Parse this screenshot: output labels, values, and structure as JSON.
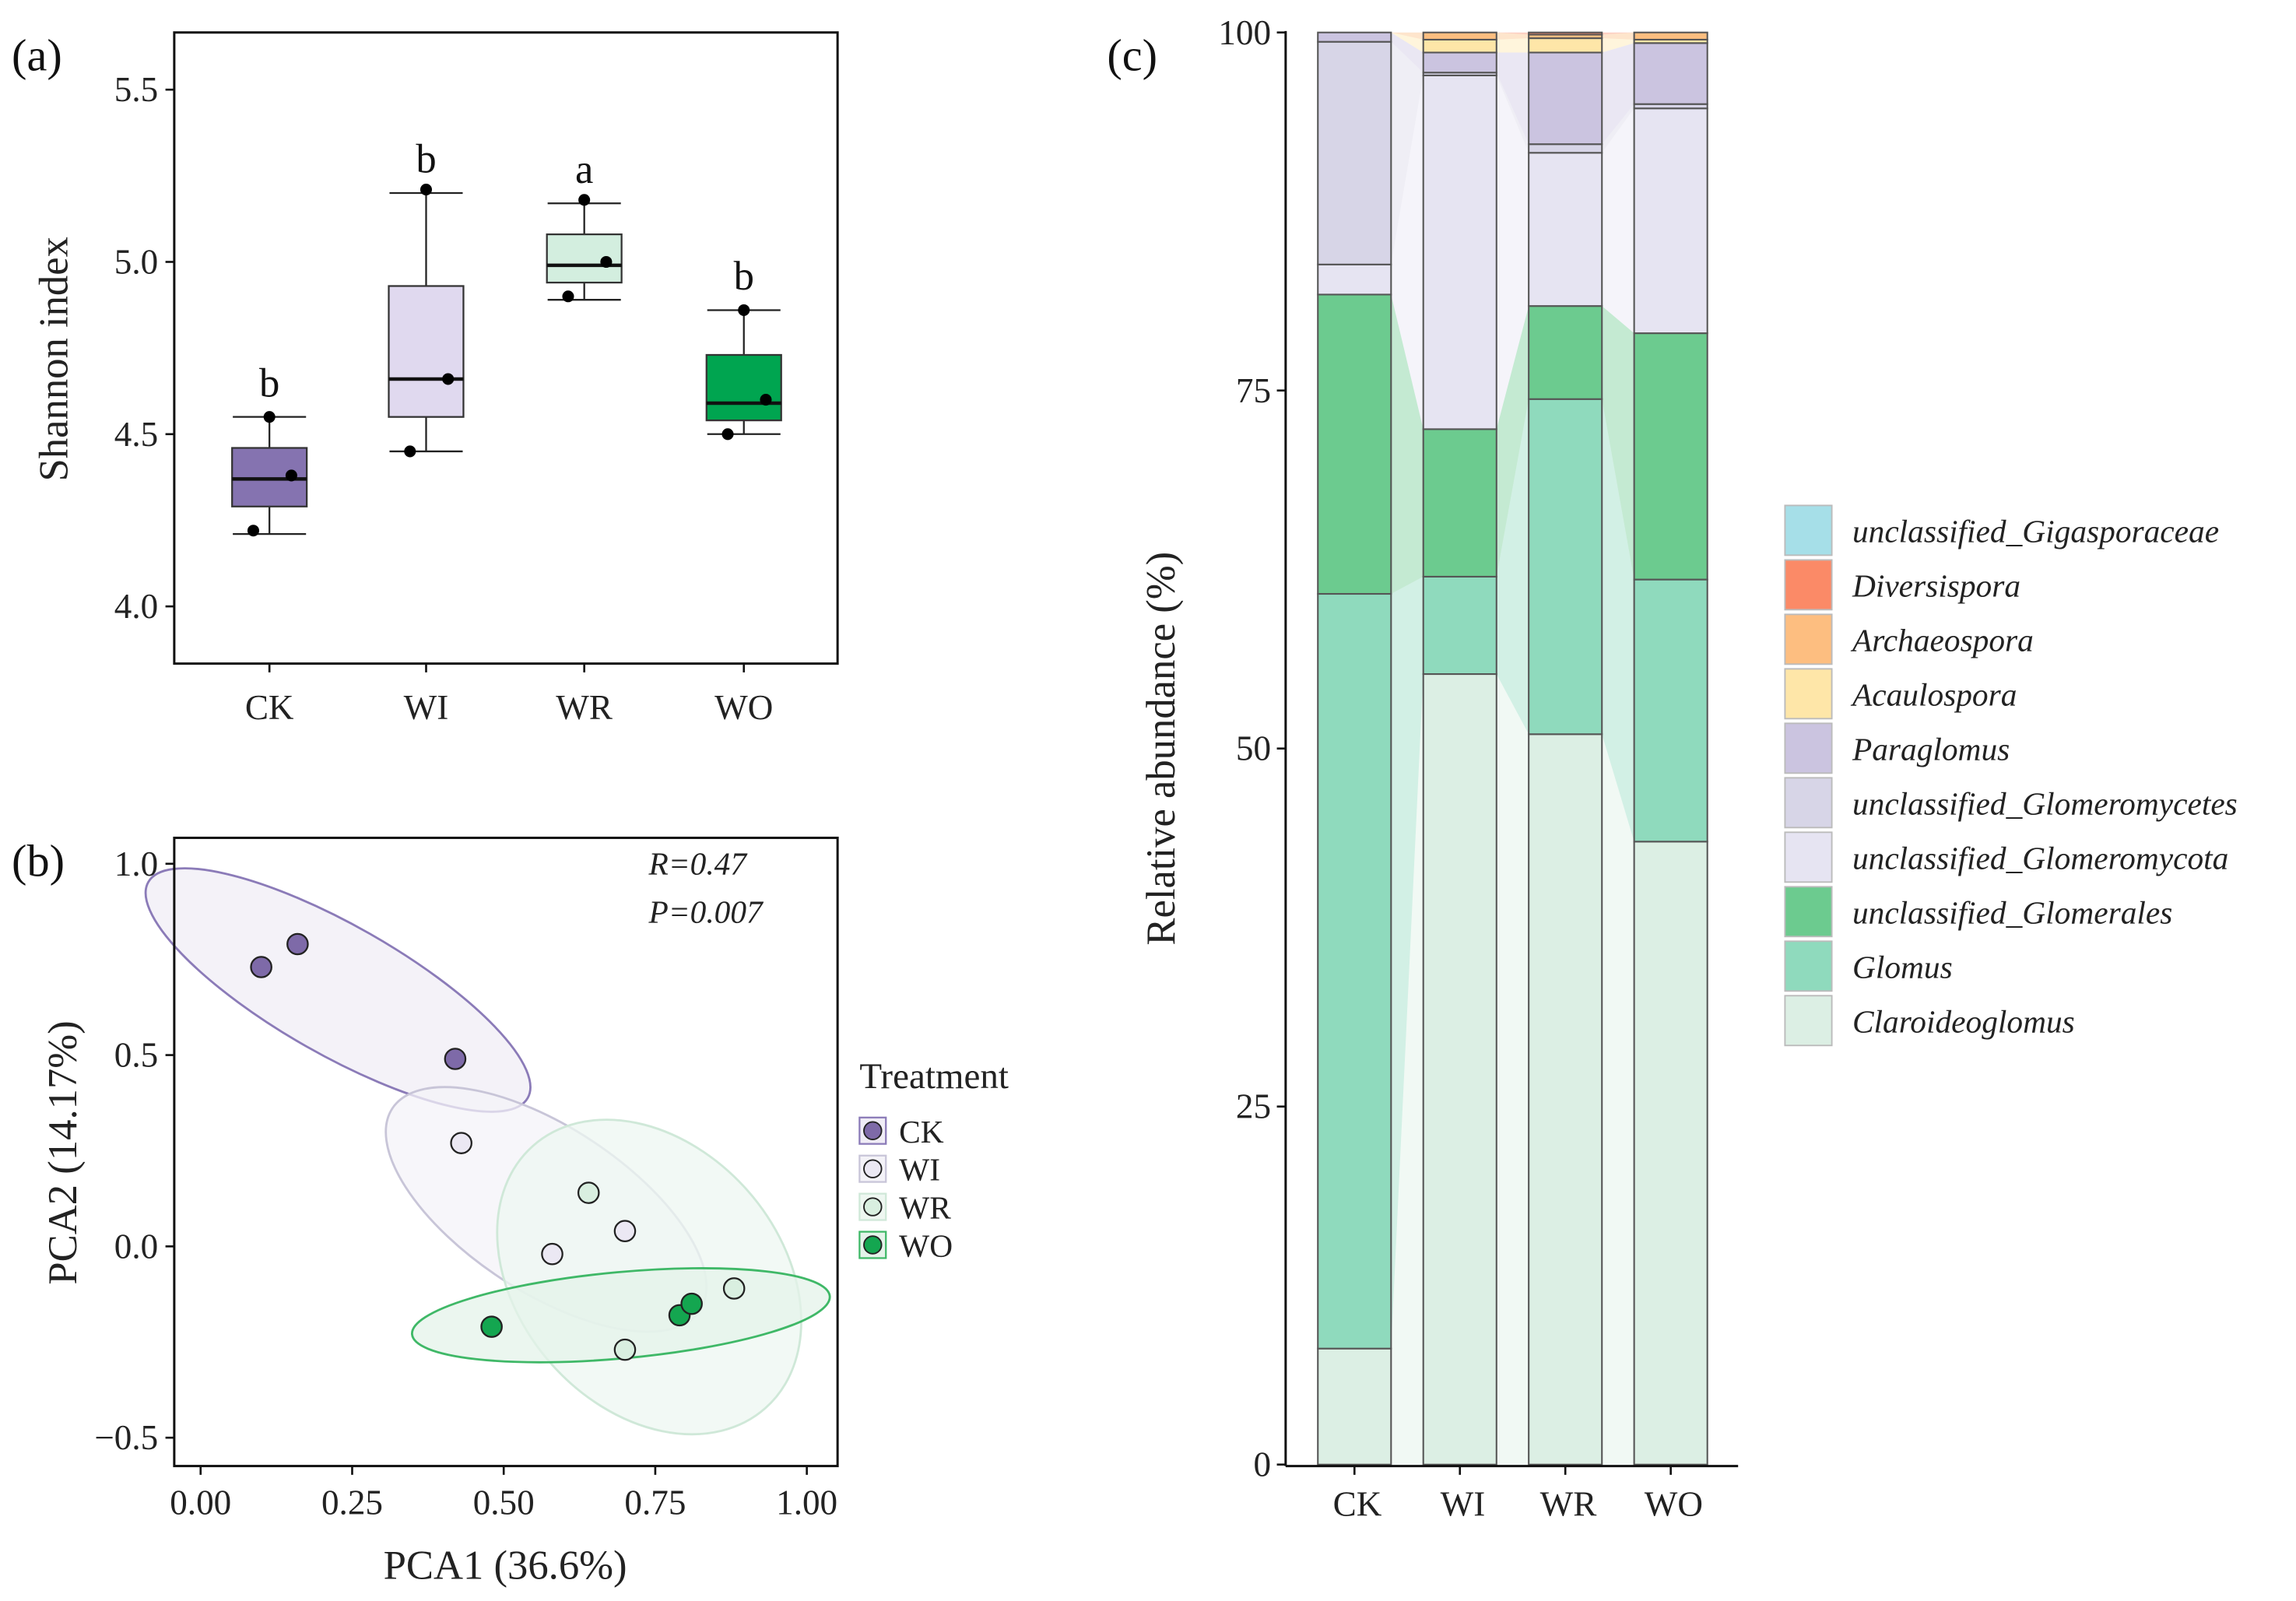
{
  "chart_data": [
    {
      "panel": "(a)",
      "type": "box",
      "ylabel": "Shannon index",
      "xlabel": "",
      "ylim": [
        3.834,
        5.666
      ],
      "yticks": [
        4.0,
        4.5,
        5.0,
        5.5
      ],
      "ytick_labels": [
        "4.0",
        "4.5",
        "5.0",
        "5.5"
      ],
      "categories": [
        "CK",
        "WI",
        "WR",
        "WO"
      ],
      "colors": [
        "#8573b0",
        "#e0d9ef",
        "#d3eedf",
        "#00a550"
      ],
      "boxes": [
        {
          "whisker_low": 4.21,
          "q1": 4.29,
          "median": 4.37,
          "q3": 4.46,
          "whisker_high": 4.55,
          "points": [
            4.55,
            4.38,
            4.22
          ],
          "letter": "b"
        },
        {
          "whisker_low": 4.45,
          "q1": 4.55,
          "median": 4.66,
          "q3": 4.93,
          "whisker_high": 5.2,
          "points": [
            5.21,
            4.66,
            4.45
          ],
          "letter": "b"
        },
        {
          "whisker_low": 4.89,
          "q1": 4.94,
          "median": 4.99,
          "q3": 5.08,
          "whisker_high": 5.17,
          "points": [
            5.18,
            5.0,
            4.9
          ],
          "letter": "a"
        },
        {
          "whisker_low": 4.5,
          "q1": 4.54,
          "median": 4.59,
          "q3": 4.73,
          "whisker_high": 4.86,
          "points": [
            4.86,
            4.6,
            4.5
          ],
          "letter": "b"
        }
      ]
    },
    {
      "panel": "(b)",
      "type": "scatter",
      "xlabel": "PCA1 (36.6%)",
      "ylabel": "PCA2 (14.17%)",
      "xlim": [
        -0.045,
        1.05
      ],
      "ylim": [
        -0.575,
        1.07
      ],
      "xticks": [
        0.0,
        0.25,
        0.5,
        0.75,
        1.0
      ],
      "xtick_labels": [
        "0.00",
        "0.25",
        "0.50",
        "0.75",
        "1.00"
      ],
      "yticks": [
        -0.5,
        0.0,
        0.5,
        1.0
      ],
      "ytick_labels": [
        "−0.5",
        "0.0",
        "0.5",
        "1.0"
      ],
      "annotation_r": "R=0.47",
      "annotation_p": "P=0.007",
      "legend_title": "Treatment",
      "legend_position": "right",
      "series": [
        {
          "name": "CK",
          "color": "#7e6aa8",
          "ellipse_fill": "#f0edf6",
          "ellipse_stroke": "#8b7bb8",
          "points": [
            [
              0.1,
              0.73
            ],
            [
              0.16,
              0.79
            ],
            [
              0.42,
              0.49
            ]
          ]
        },
        {
          "name": "WI",
          "color": "#ebe8f3",
          "ellipse_fill": "#f4f3f8",
          "ellipse_stroke": "#c8c5d8",
          "points": [
            [
              0.43,
              0.27
            ],
            [
              0.58,
              -0.02
            ],
            [
              0.7,
              0.04
            ]
          ]
        },
        {
          "name": "WR",
          "color": "#d9efe0",
          "ellipse_fill": "#eef7f1",
          "ellipse_stroke": "#cfe8d8",
          "points": [
            [
              0.64,
              0.14
            ],
            [
              0.7,
              -0.27
            ],
            [
              0.88,
              -0.11
            ]
          ]
        },
        {
          "name": "WO",
          "color": "#14a650",
          "ellipse_fill": "#e4f3e9",
          "ellipse_stroke": "#3fb867",
          "points": [
            [
              0.48,
              -0.21
            ],
            [
              0.79,
              -0.18
            ],
            [
              0.81,
              -0.15
            ]
          ]
        }
      ]
    },
    {
      "panel": "(c)",
      "type": "stacked-bar",
      "ylabel": "Relative abundance (%)",
      "ylim": [
        0,
        100
      ],
      "yticks": [
        0,
        25,
        50,
        75,
        100
      ],
      "ytick_labels": [
        "0",
        "25",
        "50",
        "75",
        "100"
      ],
      "categories": [
        "CK",
        "WI",
        "WR",
        "WO"
      ],
      "legend_position": "right",
      "taxa": [
        {
          "name": "Claroideoglomus",
          "color": "#dcefe4",
          "values": [
            8.1,
            55.2,
            51.0,
            43.5
          ]
        },
        {
          "name": "Glomus",
          "color": "#8fdabd",
          "values": [
            52.7,
            6.8,
            23.4,
            18.3
          ]
        },
        {
          "name": "unclassified_Glomerales",
          "color": "#6ccb8f",
          "values": [
            20.9,
            10.3,
            6.5,
            17.2
          ]
        },
        {
          "name": "unclassified_Glomeromycota",
          "color": "#e6e4f2",
          "values": [
            2.1,
            24.7,
            10.7,
            15.7
          ]
        },
        {
          "name": "unclassified_Glomeromycetes",
          "color": "#d7d5e7",
          "values": [
            15.55,
            0.2,
            0.6,
            0.3
          ]
        },
        {
          "name": "Paraglomus",
          "color": "#cbc4e0",
          "values": [
            0.65,
            1.4,
            6.4,
            4.26
          ]
        },
        {
          "name": "Acaulospora",
          "color": "#fee6a8",
          "values": [
            0,
            0.9,
            1.0,
            0.24
          ]
        },
        {
          "name": "Archaeospora",
          "color": "#fdbe80",
          "values": [
            0,
            0.5,
            0.25,
            0.5
          ]
        },
        {
          "name": "Diversispora",
          "color": "#fb8a67",
          "values": [
            0,
            0,
            0.15,
            0
          ]
        },
        {
          "name": "unclassified_Gigasporaceae",
          "color": "#a6dfe8",
          "values": [
            0,
            0,
            0,
            0
          ]
        }
      ],
      "legend_order": [
        "unclassified_Gigasporaceae",
        "Diversispora",
        "Archaeospora",
        "Acaulospora",
        "Paraglomus",
        "unclassified_Glomeromycetes",
        "unclassified_Glomeromycota",
        "unclassified_Glomerales",
        "Glomus",
        "Claroideoglomus"
      ]
    }
  ]
}
